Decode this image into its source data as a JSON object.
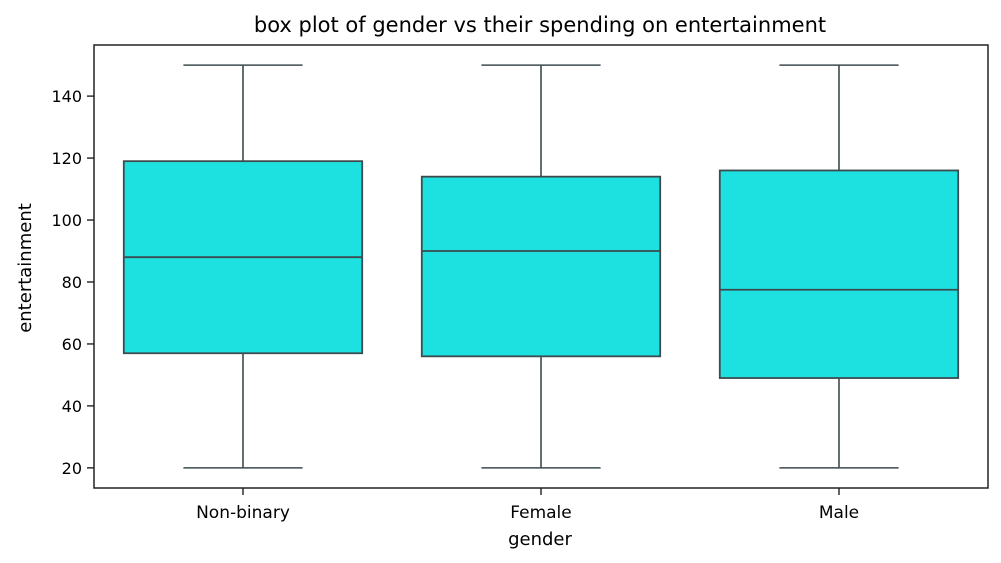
{
  "chart_data": {
    "type": "box",
    "title": "box plot of gender vs their spending on entertainment",
    "xlabel": "gender",
    "ylabel": "entertainment",
    "categories": [
      "Non-binary",
      "Female",
      "Male"
    ],
    "boxes": [
      {
        "category": "Non-binary",
        "min": 20,
        "q1": 57,
        "median": 88,
        "q3": 119,
        "max": 150
      },
      {
        "category": "Female",
        "min": 20,
        "q1": 56,
        "median": 90,
        "q3": 114,
        "max": 150
      },
      {
        "category": "Male",
        "min": 20,
        "q1": 49,
        "median": 77.5,
        "q3": 116,
        "max": 150
      }
    ],
    "yticks": [
      20,
      40,
      60,
      80,
      100,
      120,
      140
    ],
    "ylim": [
      13.5,
      156.5
    ],
    "grid": false,
    "legend": "none",
    "box_color": "#1de1e1",
    "line_color": "#3d4b4f"
  }
}
